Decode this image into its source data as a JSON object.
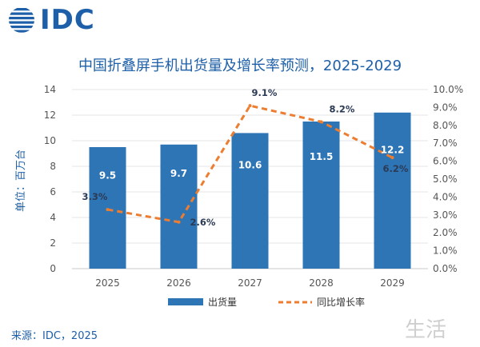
{
  "brand": {
    "logo_text": "IDC"
  },
  "source_text": "来源：IDC，2025",
  "watermark_text": "生活",
  "chart_data": {
    "type": "bar",
    "title": "中国折叠屏手机出货量及增长率预测，2025-2029",
    "categories": [
      "2025",
      "2026",
      "2027",
      "2028",
      "2029"
    ],
    "ylabel": "单位：百万台",
    "ylim": [
      0,
      14
    ],
    "yticks": [
      0,
      2,
      4,
      6,
      8,
      10,
      12,
      14
    ],
    "y2lim": [
      0,
      10
    ],
    "y2ticks": [
      "0.0%",
      "1.0%",
      "2.0%",
      "3.0%",
      "4.0%",
      "5.0%",
      "6.0%",
      "7.0%",
      "8.0%",
      "9.0%",
      "10.0%"
    ],
    "series": [
      {
        "name": "出货量",
        "kind": "bar",
        "color": "#2e75b6",
        "values": [
          9.5,
          9.7,
          10.6,
          11.5,
          12.2
        ],
        "labels": [
          "9.5",
          "9.7",
          "10.6",
          "11.5",
          "12.2"
        ]
      },
      {
        "name": "同比增长率",
        "kind": "line",
        "axis": "right",
        "color": "#ed7d31",
        "values": [
          3.3,
          2.6,
          9.1,
          8.2,
          6.2
        ],
        "labels": [
          "3.3%",
          "2.6%",
          "9.1%",
          "8.2%",
          "6.2%"
        ]
      }
    ],
    "grid": true,
    "legend": "bottom-center"
  }
}
